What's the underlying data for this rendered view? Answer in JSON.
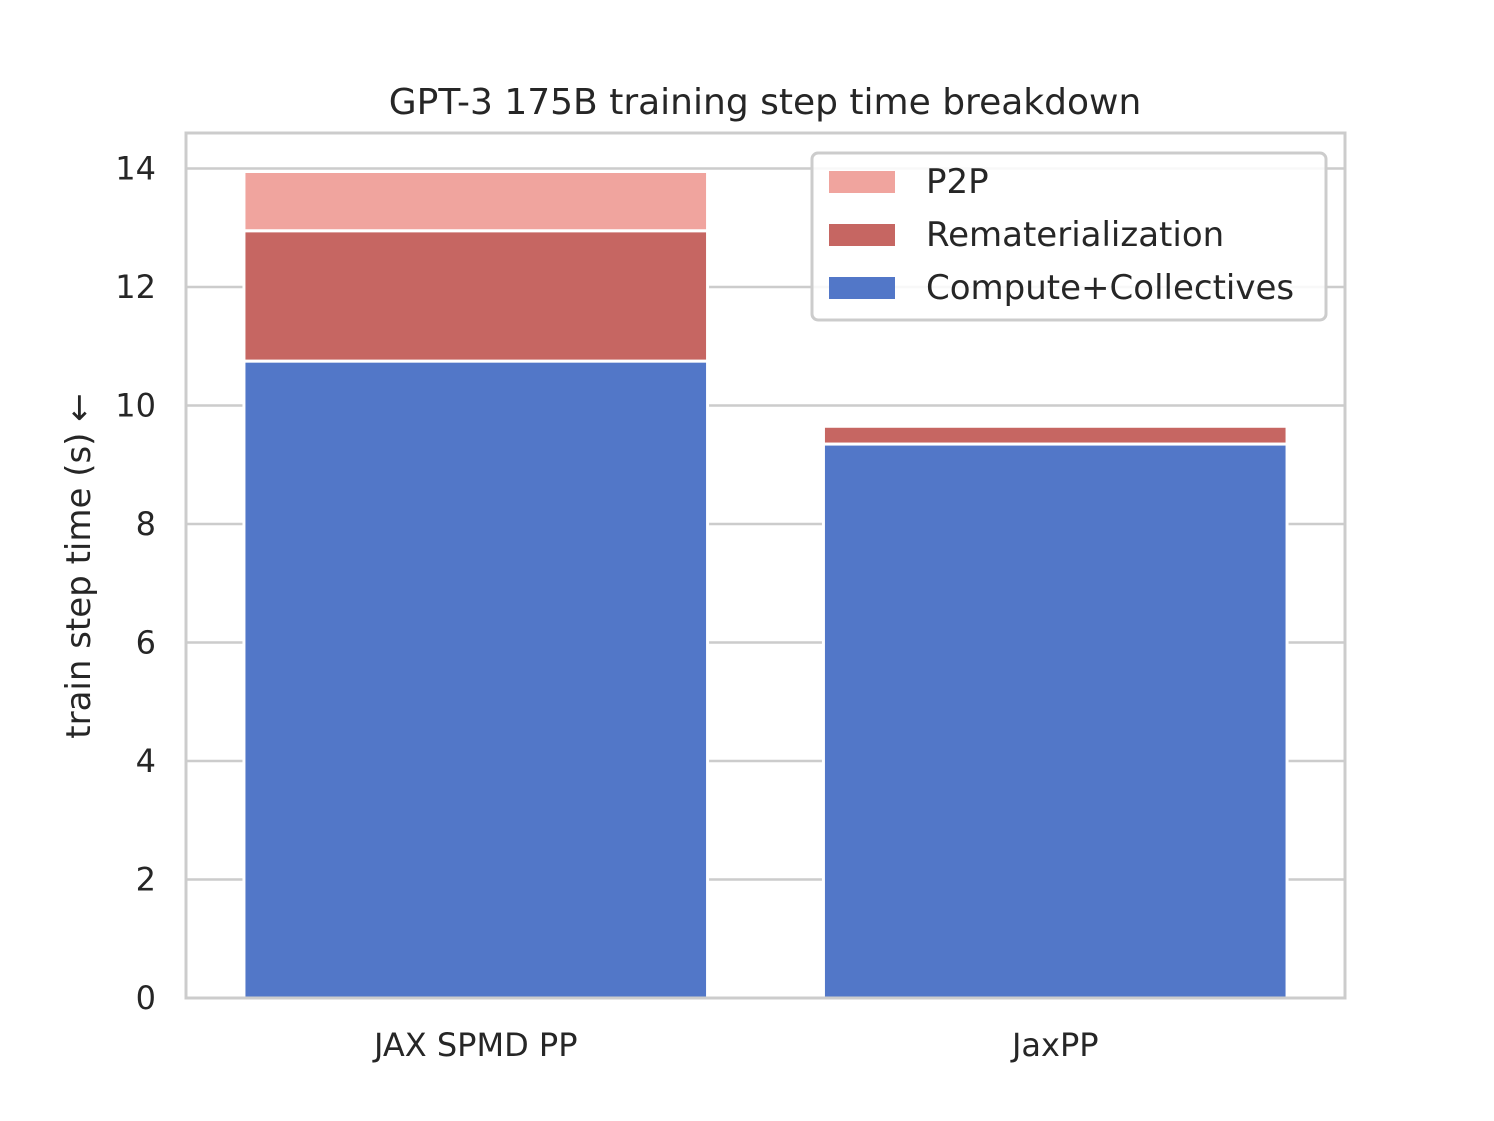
{
  "chart_data": {
    "type": "bar",
    "stacked": true,
    "title": "GPT-3 175B training step time breakdown",
    "xlabel": "",
    "ylabel": "train step time (s) ←",
    "categories": [
      "JAX SPMD PP",
      "JaxPP"
    ],
    "series": [
      {
        "name": "Compute+Collectives",
        "values": [
          10.75,
          9.35
        ],
        "color": "#5277c8"
      },
      {
        "name": "Rematerialization",
        "values": [
          2.2,
          0.3
        ],
        "color": "#c66662"
      },
      {
        "name": "P2P",
        "values": [
          1.0,
          0.0
        ],
        "color": "#f0a49e"
      }
    ],
    "ylim": [
      0,
      14.6
    ],
    "yticks": [
      0,
      2,
      4,
      6,
      8,
      10,
      12,
      14
    ],
    "grid": true,
    "legend_position": "top-right",
    "legend_order": [
      "P2P",
      "Rematerialization",
      "Compute+Collectives"
    ]
  }
}
